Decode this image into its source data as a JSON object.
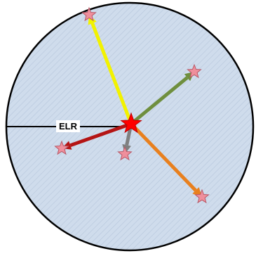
{
  "diagram": {
    "radius_label": "ELR",
    "colors": {
      "disc_fill": "#cfdcec",
      "disc_stroke": "#000000",
      "hatch": "#b7c7dc",
      "radius_line": "#000000",
      "center_star": "#ff0000",
      "center_star_stroke": "#c00000",
      "target_star": "#ef8f9c",
      "target_star_stroke": "#b85a68"
    },
    "center": {
      "name": "center-star",
      "icon": "star-icon"
    },
    "vectors": [
      {
        "name": "vector-yellow",
        "color": "#f2f200",
        "target": "star-icon"
      },
      {
        "name": "vector-olive",
        "color": "#6f8f3e",
        "target": "star-icon"
      },
      {
        "name": "vector-orange",
        "color": "#e8801e",
        "target": "star-icon"
      },
      {
        "name": "vector-gray",
        "color": "#7f7f7f",
        "target": "star-icon"
      },
      {
        "name": "vector-red",
        "color": "#b41414",
        "target": "star-icon"
      }
    ]
  }
}
